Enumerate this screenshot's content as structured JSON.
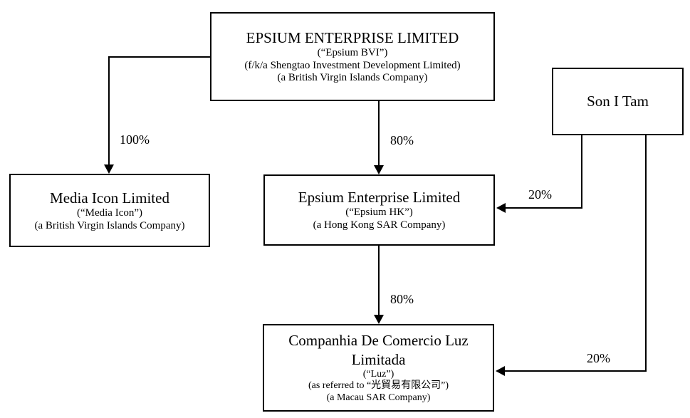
{
  "nodes": [
    {
      "id": "epsium-bvi",
      "title": "EPSIUM ENTERPRISE LIMITED",
      "lines": [
        "(“Epsium BVI”)",
        "(f/k/a Shengtao Investment Development Limited)",
        "(a British Virgin Islands Company)"
      ]
    },
    {
      "id": "son-i-tam",
      "title": "Son I Tam",
      "lines": []
    },
    {
      "id": "media-icon",
      "title": "Media Icon Limited",
      "lines": [
        "(“Media Icon”)",
        "(a British Virgin Islands Company)"
      ]
    },
    {
      "id": "epsium-hk",
      "title": "Epsium Enterprise Limited",
      "lines": [
        "(“Epsium HK”)",
        "(a Hong Kong SAR Company)"
      ]
    },
    {
      "id": "luz",
      "title": "Companhia De Comercio Luz Limitada",
      "lines": [
        "(“Luz”)",
        "(as referred to “光貿易有限公司”)",
        "(a Macau SAR Company)"
      ]
    }
  ],
  "edges": [
    {
      "from": "epsium-bvi",
      "to": "media-icon",
      "label": "100%"
    },
    {
      "from": "epsium-bvi",
      "to": "epsium-hk",
      "label": "80%"
    },
    {
      "from": "son-i-tam",
      "to": "epsium-hk",
      "label": "20%"
    },
    {
      "from": "epsium-hk",
      "to": "luz",
      "label": "80%"
    },
    {
      "from": "son-i-tam",
      "to": "luz",
      "label": "20%"
    }
  ],
  "colors": {
    "line": "#000000",
    "text": "#000000",
    "background": "#ffffff"
  }
}
